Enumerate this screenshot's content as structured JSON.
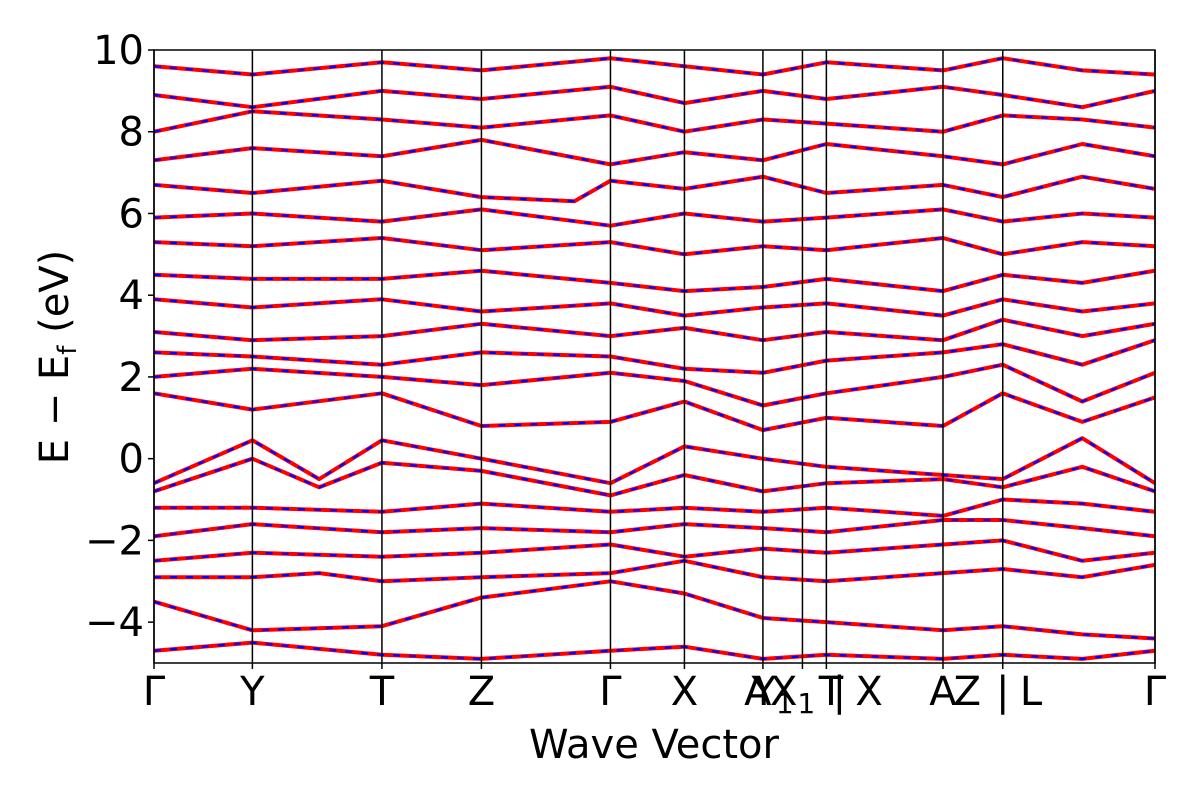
{
  "chart_data": {
    "type": "line",
    "xlabel": "Wave Vector",
    "ylabel_main": "E − E",
    "ylabel_sub": "f",
    "ylabel_unit": " (eV)",
    "ylim": [
      -5,
      10
    ],
    "yticks": [
      -4,
      -2,
      0,
      2,
      4,
      6,
      8,
      10
    ],
    "ytick_labels": [
      "−4",
      "−2",
      "0",
      "2",
      "4",
      "6",
      "8",
      "10"
    ],
    "kpath_ticks": [
      0,
      0.0983,
      0.2277,
      0.3271,
      0.456,
      0.5299,
      0.6083,
      0.6478,
      0.6717,
      0.7882,
      0.8479,
      1.0
    ],
    "kpath_labels": [
      "Γ",
      "Y",
      "T",
      "Z",
      "Γ",
      "X",
      "A",
      "Y",
      "X",
      "T",
      "X",
      "A",
      "Z",
      "L",
      "Γ"
    ],
    "kpath_label_positions": [
      0,
      0.0983,
      0.2277,
      0.3271,
      0.456,
      0.5299,
      0.6032,
      0.618,
      0.638,
      0.6763,
      0.7144,
      0.7882,
      0.8125,
      0.8761,
      1.0
    ],
    "kpath_label_subscripts": [
      "",
      "",
      "",
      "",
      "",
      "",
      "",
      "1",
      "1",
      "",
      "",
      "",
      "",
      "",
      ""
    ],
    "kpath_separators": [
      0.6847,
      0.8479
    ],
    "series": [
      {
        "color": "#ff0000",
        "style": "solid",
        "bands": [
          {
            "x": [
              0,
              0.0983,
              0.2277,
              0.3271,
              0.456,
              0.5299,
              0.6083,
              0.6717,
              0.7882,
              0.8479,
              0.9274,
              1.0
            ],
            "y": [
              -4.7,
              -4.5,
              -4.8,
              -4.9,
              -4.7,
              -4.6,
              -4.9,
              -4.8,
              -4.9,
              -4.8,
              -4.9,
              -4.7
            ]
          },
          {
            "x": [
              0,
              0.0983,
              0.2277,
              0.3271,
              0.456,
              0.5299,
              0.6083,
              0.6717,
              0.7882,
              0.8479,
              0.9274,
              1.0
            ],
            "y": [
              -3.5,
              -4.2,
              -4.1,
              -3.4,
              -3.0,
              -3.3,
              -3.9,
              -4.0,
              -4.2,
              -4.1,
              -4.3,
              -4.4
            ]
          },
          {
            "x": [
              0,
              0.0983,
              0.165,
              0.2277,
              0.3271,
              0.456,
              0.5299,
              0.6083,
              0.6717,
              0.7882,
              0.8479,
              0.9274,
              1.0
            ],
            "y": [
              -2.9,
              -2.9,
              -2.8,
              -3.0,
              -2.9,
              -2.8,
              -2.5,
              -2.9,
              -3.0,
              -2.8,
              -2.7,
              -2.9,
              -2.6
            ]
          },
          {
            "x": [
              0,
              0.0983,
              0.2277,
              0.3271,
              0.456,
              0.5299,
              0.6083,
              0.6717,
              0.7882,
              0.8479,
              0.9274,
              1.0
            ],
            "y": [
              -2.5,
              -2.3,
              -2.4,
              -2.3,
              -2.1,
              -2.4,
              -2.2,
              -2.3,
              -2.1,
              -2.0,
              -2.5,
              -2.3
            ]
          },
          {
            "x": [
              0,
              0.0983,
              0.2277,
              0.3271,
              0.456,
              0.5299,
              0.6083,
              0.6717,
              0.7882,
              0.8479,
              0.9274,
              1.0
            ],
            "y": [
              -1.9,
              -1.6,
              -1.8,
              -1.7,
              -1.8,
              -1.6,
              -1.7,
              -1.8,
              -1.5,
              -1.5,
              -1.7,
              -1.9
            ]
          },
          {
            "x": [
              0,
              0.0983,
              0.2277,
              0.3271,
              0.456,
              0.5299,
              0.6083,
              0.6717,
              0.7882,
              0.8479,
              0.9274,
              1.0
            ],
            "y": [
              -1.2,
              -1.2,
              -1.3,
              -1.1,
              -1.3,
              -1.2,
              -1.3,
              -1.2,
              -1.4,
              -1.0,
              -1.1,
              -1.3
            ]
          },
          {
            "x": [
              0,
              0.0983,
              0.165,
              0.2277,
              0.3271,
              0.456,
              0.5299,
              0.6083,
              0.6717,
              0.7882,
              0.8479,
              0.9274,
              1.0
            ],
            "y": [
              -0.8,
              0.0,
              -0.7,
              -0.1,
              -0.3,
              -0.9,
              -0.4,
              -0.8,
              -0.6,
              -0.5,
              -0.7,
              -0.2,
              -0.8
            ]
          },
          {
            "x": [
              0,
              0.0983,
              0.165,
              0.2277,
              0.3271,
              0.456,
              0.5299,
              0.6083,
              0.6717,
              0.7882,
              0.8479,
              0.9274,
              1.0
            ],
            "y": [
              -0.6,
              0.45,
              -0.5,
              0.45,
              0.0,
              -0.6,
              0.3,
              0.0,
              -0.2,
              -0.4,
              -0.5,
              0.5,
              -0.6
            ]
          },
          {
            "x": [
              0,
              0.0983,
              0.2277,
              0.3271,
              0.456,
              0.5299,
              0.6083,
              0.6717,
              0.7882,
              0.8479,
              0.9274,
              1.0
            ],
            "y": [
              1.6,
              1.2,
              1.6,
              0.8,
              0.9,
              1.4,
              0.7,
              1.0,
              0.8,
              1.6,
              0.9,
              1.5
            ]
          },
          {
            "x": [
              0,
              0.0983,
              0.2277,
              0.3271,
              0.456,
              0.5299,
              0.6083,
              0.6717,
              0.7882,
              0.8479,
              0.9274,
              1.0
            ],
            "y": [
              2.0,
              2.2,
              2.0,
              1.8,
              2.1,
              1.9,
              1.3,
              1.6,
              2.0,
              2.3,
              1.4,
              2.1
            ]
          },
          {
            "x": [
              0,
              0.0983,
              0.2277,
              0.3271,
              0.456,
              0.5299,
              0.6083,
              0.6717,
              0.7882,
              0.8479,
              0.9274,
              1.0
            ],
            "y": [
              2.6,
              2.5,
              2.3,
              2.6,
              2.5,
              2.2,
              2.1,
              2.4,
              2.6,
              2.8,
              2.3,
              2.9
            ]
          },
          {
            "x": [
              0,
              0.0983,
              0.2277,
              0.3271,
              0.456,
              0.5299,
              0.6083,
              0.6717,
              0.7882,
              0.8479,
              0.9274,
              1.0
            ],
            "y": [
              3.1,
              2.9,
              3.0,
              3.3,
              3.0,
              3.2,
              2.9,
              3.1,
              2.9,
              3.4,
              3.0,
              3.3
            ]
          },
          {
            "x": [
              0,
              0.0983,
              0.2277,
              0.3271,
              0.456,
              0.5299,
              0.6083,
              0.6717,
              0.7882,
              0.8479,
              0.9274,
              1.0
            ],
            "y": [
              3.9,
              3.7,
              3.9,
              3.6,
              3.8,
              3.5,
              3.7,
              3.8,
              3.5,
              3.9,
              3.6,
              3.8
            ]
          },
          {
            "x": [
              0,
              0.0983,
              0.2277,
              0.3271,
              0.456,
              0.5299,
              0.6083,
              0.6717,
              0.7882,
              0.8479,
              0.9274,
              1.0
            ],
            "y": [
              4.5,
              4.4,
              4.4,
              4.6,
              4.3,
              4.1,
              4.2,
              4.4,
              4.1,
              4.5,
              4.3,
              4.6
            ]
          },
          {
            "x": [
              0,
              0.0983,
              0.2277,
              0.3271,
              0.456,
              0.5299,
              0.6083,
              0.6717,
              0.7882,
              0.8479,
              0.9274,
              1.0
            ],
            "y": [
              5.3,
              5.2,
              5.4,
              5.1,
              5.3,
              5.0,
              5.2,
              5.1,
              5.4,
              5.0,
              5.3,
              5.2
            ]
          },
          {
            "x": [
              0,
              0.0983,
              0.2277,
              0.3271,
              0.456,
              0.5299,
              0.6083,
              0.6717,
              0.7882,
              0.8479,
              0.9274,
              1.0
            ],
            "y": [
              5.9,
              6.0,
              5.8,
              6.1,
              5.7,
              6.0,
              5.8,
              5.9,
              6.1,
              5.8,
              6.0,
              5.9
            ]
          },
          {
            "x": [
              0,
              0.0983,
              0.2277,
              0.3271,
              0.456,
              0.42,
              0.5299,
              0.6083,
              0.6717,
              0.7882,
              0.8479,
              0.9274,
              1.0
            ],
            "y": [
              6.7,
              6.5,
              6.8,
              6.4,
              6.8,
              6.3,
              6.6,
              6.9,
              6.5,
              6.7,
              6.4,
              6.9,
              6.6
            ]
          },
          {
            "x": [
              0,
              0.0983,
              0.2277,
              0.3271,
              0.456,
              0.5299,
              0.6083,
              0.6717,
              0.7882,
              0.8479,
              0.9274,
              1.0
            ],
            "y": [
              7.3,
              7.6,
              7.4,
              7.8,
              7.2,
              7.5,
              7.3,
              7.7,
              7.4,
              7.2,
              7.7,
              7.4
            ]
          },
          {
            "x": [
              0,
              0.0983,
              0.2277,
              0.3271,
              0.456,
              0.5299,
              0.6083,
              0.6717,
              0.7882,
              0.8479,
              0.9274,
              1.0
            ],
            "y": [
              8.0,
              8.5,
              8.3,
              8.1,
              8.4,
              8.0,
              8.3,
              8.2,
              8.0,
              8.4,
              8.3,
              8.1
            ]
          },
          {
            "x": [
              0,
              0.0983,
              0.2277,
              0.3271,
              0.456,
              0.5299,
              0.6083,
              0.6717,
              0.7882,
              0.8479,
              0.9274,
              1.0
            ],
            "y": [
              8.9,
              8.6,
              9.0,
              8.8,
              9.1,
              8.7,
              9.0,
              8.8,
              9.1,
              8.9,
              8.6,
              9.0
            ]
          },
          {
            "x": [
              0,
              0.0983,
              0.2277,
              0.3271,
              0.456,
              0.5299,
              0.6083,
              0.6717,
              0.7882,
              0.8479,
              0.9274,
              1.0
            ],
            "y": [
              9.6,
              9.4,
              9.7,
              9.5,
              9.8,
              9.6,
              9.4,
              9.7,
              9.5,
              9.8,
              9.5,
              9.4
            ]
          }
        ]
      }
    ],
    "overlay": {
      "color": "#0000ff",
      "style": "dashed"
    }
  }
}
